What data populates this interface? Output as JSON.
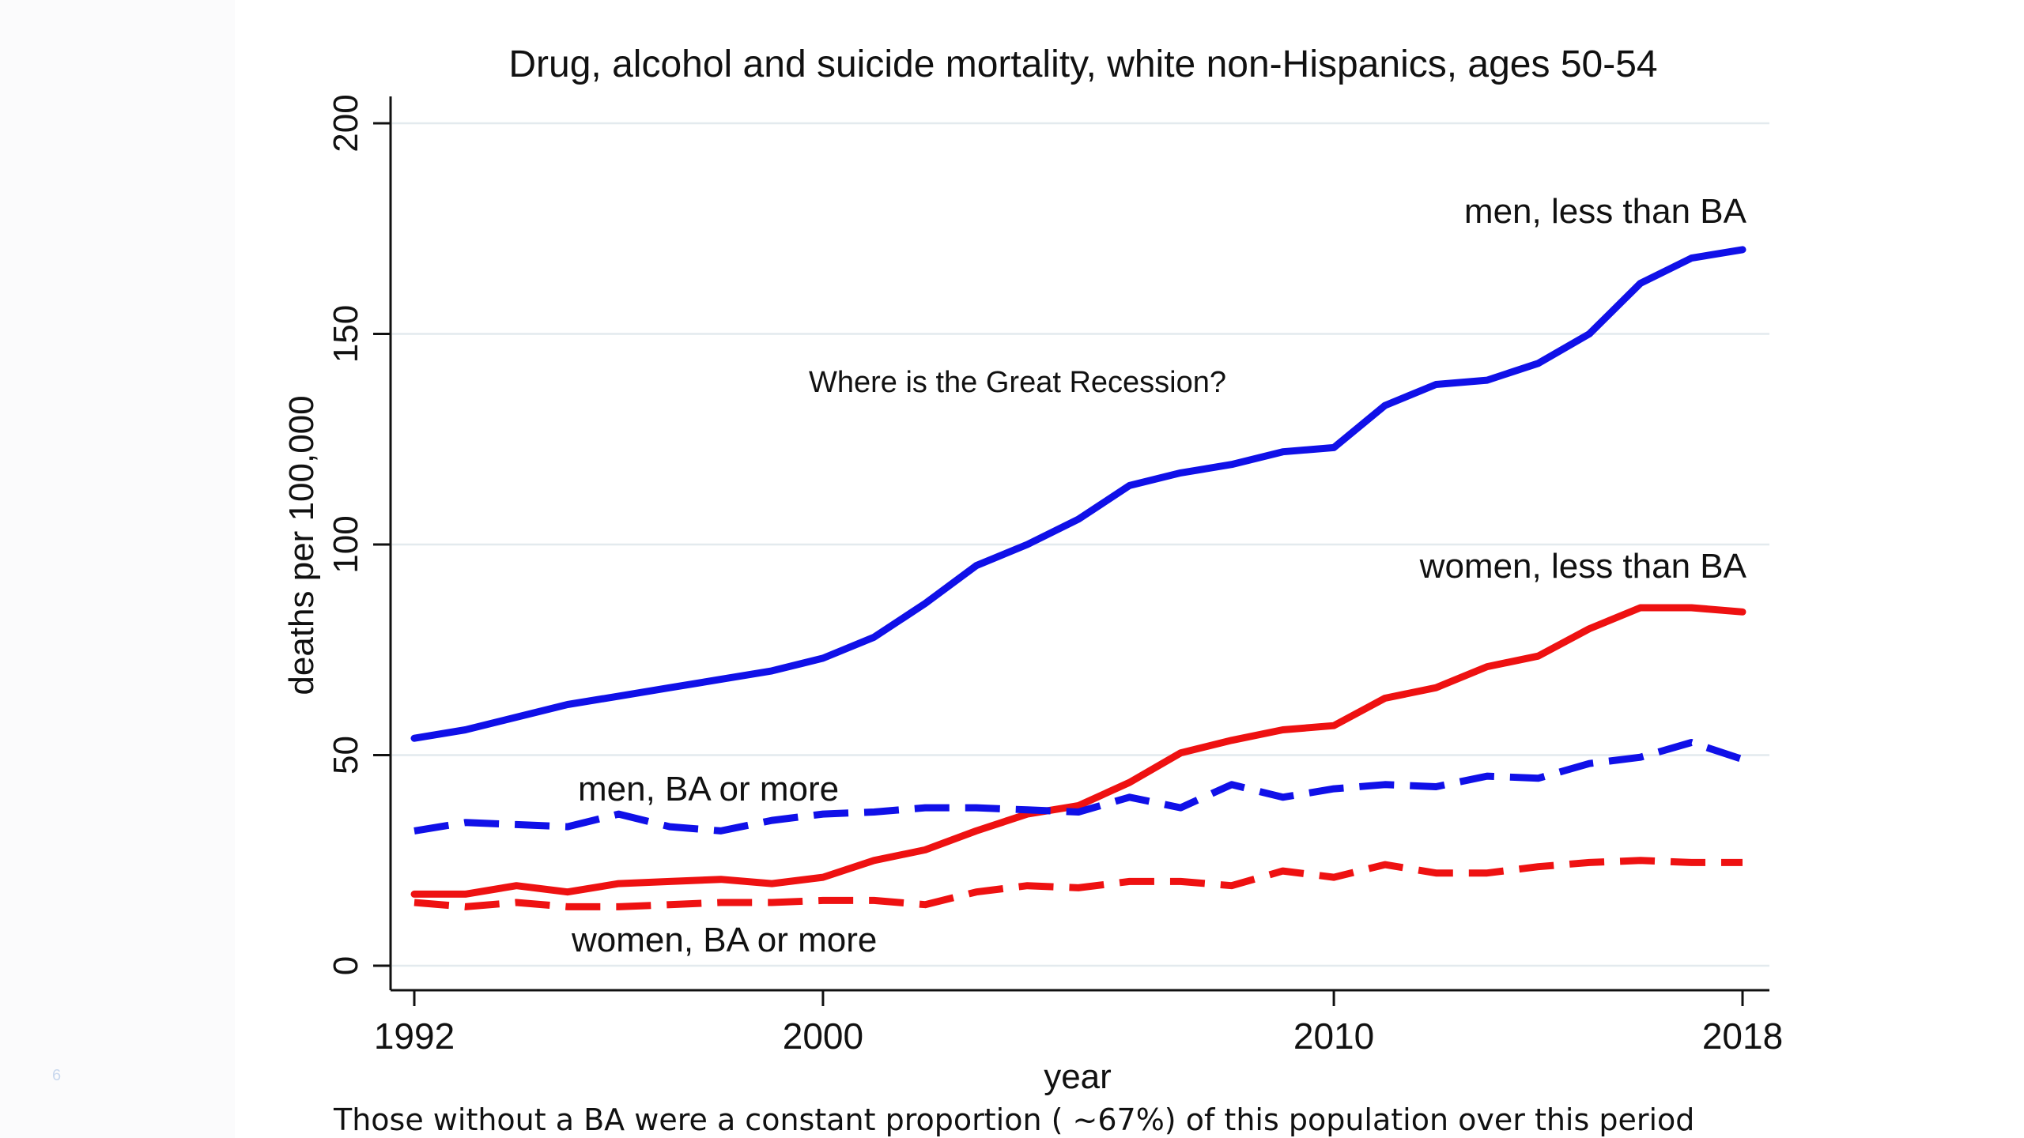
{
  "slide": {
    "page_number": "6",
    "footnote": "Those without a BA were a constant proportion ( ~67%) of this population over this period"
  },
  "chart_data": {
    "type": "line",
    "title": "Drug, alcohol and suicide mortality, white non-Hispanics, ages 50-54",
    "xlabel": "year",
    "ylabel": "deaths per 100,000",
    "xlim": [
      1992,
      2018
    ],
    "ylim": [
      0,
      200
    ],
    "x_ticks": [
      1992,
      2000,
      2010,
      2018
    ],
    "y_ticks": [
      0,
      50,
      100,
      150,
      200
    ],
    "grid": true,
    "annotation": "Where is the Great Recession?",
    "x": [
      1992,
      1993,
      1994,
      1995,
      1996,
      1997,
      1998,
      1999,
      2000,
      2001,
      2002,
      2003,
      2004,
      2005,
      2006,
      2007,
      2008,
      2009,
      2010,
      2011,
      2012,
      2013,
      2014,
      2015,
      2016,
      2017,
      2018
    ],
    "series": [
      {
        "name": "men, less than BA",
        "color": "#1010e8",
        "dash": "solid",
        "label_anchor": "end",
        "values": [
          54,
          56,
          59,
          62,
          64,
          66,
          68,
          70,
          73,
          78,
          86,
          95,
          100,
          106,
          114,
          117,
          119,
          122,
          123,
          133,
          138,
          139,
          143,
          150,
          162,
          168,
          170
        ]
      },
      {
        "name": "women, less than BA",
        "color": "#ee1111",
        "dash": "solid",
        "label_anchor": "end",
        "values": [
          17,
          17,
          19,
          17.5,
          19.5,
          20,
          20.5,
          19.5,
          21,
          25,
          27.5,
          32,
          36,
          38,
          43.5,
          50.5,
          53.5,
          56,
          57,
          63.5,
          66,
          71,
          73.5,
          80,
          85,
          85,
          84
        ]
      },
      {
        "name": "men, BA or more",
        "color": "#1010e8",
        "dash": "dashed",
        "label_anchor": "start",
        "values": [
          32,
          34,
          33.5,
          33,
          36,
          33,
          32,
          34.5,
          36,
          36.5,
          37.5,
          37.5,
          37,
          36.5,
          40,
          37.5,
          43,
          40,
          42,
          43,
          42.5,
          45,
          44.5,
          48,
          49.5,
          53,
          49
        ]
      },
      {
        "name": "women, BA or more",
        "color": "#ee1111",
        "dash": "dashed",
        "label_anchor": "start",
        "values": [
          15,
          14,
          15,
          14,
          14,
          14.5,
          15,
          15,
          15.5,
          15.5,
          14.5,
          17.5,
          19,
          18.5,
          20,
          20,
          19,
          22.5,
          21,
          24,
          22,
          22,
          23.5,
          24.5,
          25,
          24.5,
          24.5
        ]
      }
    ]
  }
}
